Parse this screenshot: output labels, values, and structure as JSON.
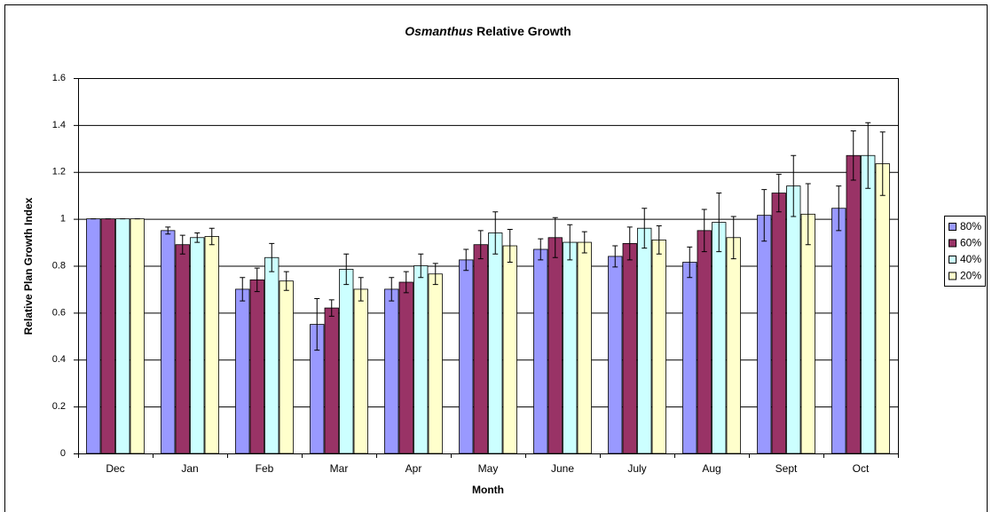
{
  "chart_data": {
    "type": "bar",
    "title": {
      "species": "Osmanthus",
      "text": "Relative Growth"
    },
    "x_label": "Month",
    "y_label": "Relative Plan Growth Index",
    "categories": [
      "Dec",
      "Jan",
      "Feb",
      "Mar",
      "Apr",
      "May",
      "June",
      "July",
      "Aug",
      "Sept",
      "Oct"
    ],
    "series": [
      {
        "name": "80%",
        "color": "#9999ff",
        "values": [
          1,
          0.95,
          0.7,
          0.55,
          0.7,
          0.825,
          0.87,
          0.84,
          0.815,
          1.015,
          1.045
        ],
        "errors": [
          0,
          0.015,
          0.05,
          0.11,
          0.05,
          0.045,
          0.045,
          0.045,
          0.065,
          0.11,
          0.095
        ]
      },
      {
        "name": "60%",
        "color": "#993366",
        "values": [
          1,
          0.89,
          0.74,
          0.62,
          0.73,
          0.89,
          0.92,
          0.895,
          0.95,
          1.11,
          1.27
        ],
        "errors": [
          0,
          0.04,
          0.05,
          0.035,
          0.045,
          0.06,
          0.085,
          0.07,
          0.09,
          0.08,
          0.105
        ]
      },
      {
        "name": "40%",
        "color": "#ccffff",
        "values": [
          1,
          0.92,
          0.835,
          0.785,
          0.8,
          0.94,
          0.9,
          0.96,
          0.985,
          1.14,
          1.27
        ],
        "errors": [
          0,
          0.02,
          0.06,
          0.065,
          0.05,
          0.09,
          0.075,
          0.085,
          0.125,
          0.13,
          0.14
        ]
      },
      {
        "name": "20%",
        "color": "#ffffcc",
        "values": [
          1,
          0.925,
          0.735,
          0.7,
          0.765,
          0.885,
          0.9,
          0.91,
          0.92,
          1.02,
          1.235
        ],
        "errors": [
          0,
          0.035,
          0.04,
          0.05,
          0.045,
          0.07,
          0.045,
          0.06,
          0.09,
          0.13,
          0.135
        ]
      }
    ],
    "ylim": [
      0,
      1.6
    ],
    "yticks": [
      0,
      0.2,
      0.4,
      0.6,
      0.8,
      1,
      1.2,
      1.4,
      1.6
    ],
    "grid": true,
    "legend": "right"
  }
}
